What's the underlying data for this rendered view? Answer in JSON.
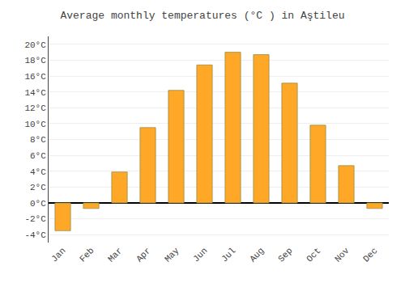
{
  "chart_data": {
    "type": "bar",
    "title": "Average monthly temperatures (°C ) in Aştileu",
    "categories": [
      "Jan",
      "Feb",
      "Mar",
      "Apr",
      "May",
      "Jun",
      "Jul",
      "Aug",
      "Sep",
      "Oct",
      "Nov",
      "Dec"
    ],
    "values": [
      -3.5,
      -0.7,
      3.9,
      9.5,
      14.2,
      17.4,
      19.0,
      18.7,
      15.1,
      9.8,
      4.7,
      -0.7
    ],
    "color": "#FFA726",
    "ylim": [
      -5,
      21
    ],
    "yticks": [
      {
        "value": -4,
        "label": "-4°C"
      },
      {
        "value": -2,
        "label": "-2°C"
      },
      {
        "value": 0,
        "label": "0°C"
      },
      {
        "value": 2,
        "label": "2°C"
      },
      {
        "value": 4,
        "label": "4°C"
      },
      {
        "value": 6,
        "label": "6°C"
      },
      {
        "value": 8,
        "label": "8°C"
      },
      {
        "value": 10,
        "label": "10°C"
      },
      {
        "value": 12,
        "label": "12°C"
      },
      {
        "value": 14,
        "label": "14°C"
      },
      {
        "value": 16,
        "label": "16°C"
      },
      {
        "value": 18,
        "label": "18°C"
      },
      {
        "value": 20,
        "label": "20°C"
      }
    ],
    "grid": true
  }
}
